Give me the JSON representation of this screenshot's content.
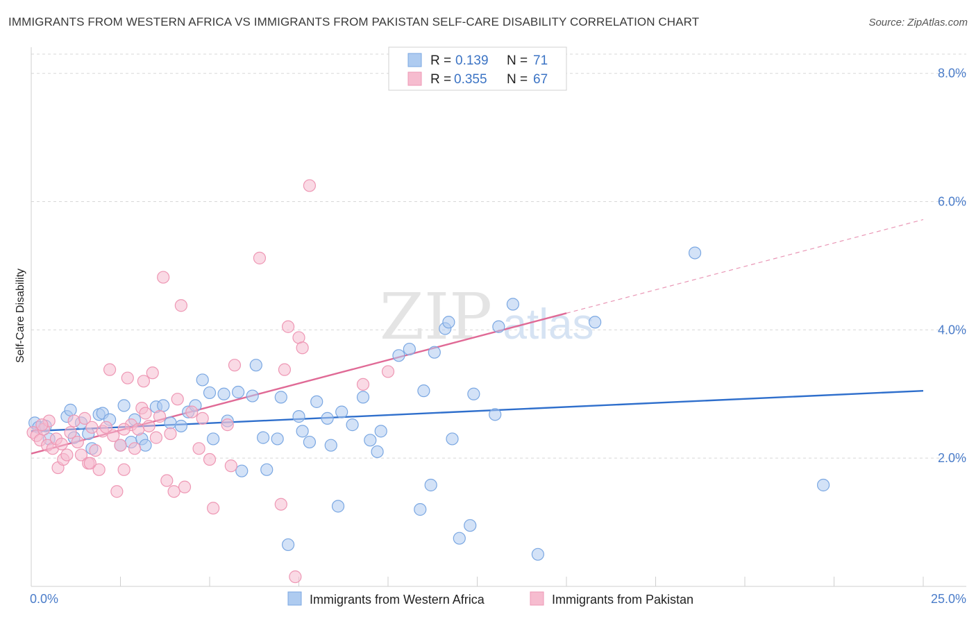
{
  "title": "IMMIGRANTS FROM WESTERN AFRICA VS IMMIGRANTS FROM PAKISTAN SELF-CARE DISABILITY CORRELATION CHART",
  "source": "Source: ZipAtlas.com",
  "watermark": {
    "zip": "ZIP",
    "atlas": "atlas"
  },
  "colors": {
    "blue_fill": "#aecbf0",
    "blue_stroke": "#7aa7e2",
    "blue_line": "#2f6fcc",
    "pink_fill": "#f6bccf",
    "pink_stroke": "#ee97b4",
    "pink_line": "#e06a96",
    "grid": "#d7d7d7",
    "tick_text": "#4a7cc9"
  },
  "legend": {
    "rows": [
      {
        "r_label": "R =",
        "r_value": "0.139",
        "n_label": "N =",
        "n_value": "71"
      },
      {
        "r_label": "R =",
        "r_value": "0.355",
        "n_label": "N =",
        "n_value": "67"
      }
    ]
  },
  "chart_data": {
    "type": "scatter",
    "title": "IMMIGRANTS FROM WESTERN AFRICA VS IMMIGRANTS FROM PAKISTAN SELF-CARE DISABILITY CORRELATION CHART",
    "xlabel": "",
    "ylabel": "Self-Care Disability",
    "xlim": [
      0,
      25
    ],
    "ylim": [
      0,
      8.3
    ],
    "x_tick_labels": [
      "0.0%",
      "25.0%"
    ],
    "y_ticks": [
      2,
      4,
      6,
      8
    ],
    "y_tick_labels": [
      "2.0%",
      "4.0%",
      "6.0%",
      "8.0%"
    ],
    "legend_position": "top-center",
    "series": [
      {
        "name": "Immigrants from Western Africa",
        "color": "blue",
        "trend": {
          "x0": 0,
          "y0": 2.42,
          "x1": 25,
          "y1": 3.05,
          "dash_from": null
        },
        "points": [
          [
            0.1,
            2.55
          ],
          [
            0.2,
            2.48
          ],
          [
            0.4,
            2.5
          ],
          [
            0.5,
            2.3
          ],
          [
            1.0,
            2.65
          ],
          [
            1.1,
            2.75
          ],
          [
            1.2,
            2.32
          ],
          [
            1.4,
            2.55
          ],
          [
            1.6,
            2.38
          ],
          [
            1.7,
            2.15
          ],
          [
            1.9,
            2.68
          ],
          [
            2.0,
            2.7
          ],
          [
            2.2,
            2.6
          ],
          [
            2.5,
            2.2
          ],
          [
            2.6,
            2.82
          ],
          [
            2.8,
            2.25
          ],
          [
            2.9,
            2.6
          ],
          [
            3.1,
            2.3
          ],
          [
            3.2,
            2.2
          ],
          [
            3.5,
            2.8
          ],
          [
            3.7,
            2.82
          ],
          [
            3.9,
            2.55
          ],
          [
            4.2,
            2.5
          ],
          [
            4.4,
            2.72
          ],
          [
            4.6,
            2.82
          ],
          [
            4.8,
            3.22
          ],
          [
            5.0,
            3.02
          ],
          [
            5.1,
            2.3
          ],
          [
            5.4,
            3.0
          ],
          [
            5.5,
            2.58
          ],
          [
            5.8,
            3.03
          ],
          [
            5.9,
            1.8
          ],
          [
            6.2,
            2.97
          ],
          [
            6.3,
            3.45
          ],
          [
            6.5,
            2.32
          ],
          [
            6.6,
            1.82
          ],
          [
            6.9,
            2.3
          ],
          [
            7.0,
            2.95
          ],
          [
            7.2,
            0.65
          ],
          [
            7.5,
            2.65
          ],
          [
            7.6,
            2.42
          ],
          [
            7.8,
            2.25
          ],
          [
            8.0,
            2.88
          ],
          [
            8.3,
            2.62
          ],
          [
            8.4,
            2.2
          ],
          [
            8.7,
            2.72
          ],
          [
            8.6,
            1.25
          ],
          [
            9.0,
            2.52
          ],
          [
            9.3,
            2.95
          ],
          [
            9.5,
            2.28
          ],
          [
            9.7,
            2.1
          ],
          [
            9.8,
            2.42
          ],
          [
            10.3,
            3.6
          ],
          [
            10.6,
            3.7
          ],
          [
            10.9,
            1.2
          ],
          [
            11.0,
            3.05
          ],
          [
            11.2,
            1.58
          ],
          [
            11.3,
            3.65
          ],
          [
            11.6,
            4.02
          ],
          [
            11.7,
            4.12
          ],
          [
            11.8,
            2.3
          ],
          [
            12.0,
            0.75
          ],
          [
            12.3,
            0.95
          ],
          [
            12.4,
            3.0
          ],
          [
            13.0,
            2.68
          ],
          [
            13.1,
            4.05
          ],
          [
            13.5,
            4.4
          ],
          [
            14.2,
            0.5
          ],
          [
            15.8,
            4.12
          ],
          [
            18.6,
            5.2
          ],
          [
            22.2,
            1.58
          ]
        ]
      },
      {
        "name": "Immigrants from Pakistan",
        "color": "pink",
        "trend": {
          "x0": 0,
          "y0": 2.07,
          "x1": 25,
          "y1": 5.72,
          "dash_from": 15
        },
        "points": [
          [
            0.05,
            2.4
          ],
          [
            0.15,
            2.35
          ],
          [
            0.25,
            2.28
          ],
          [
            0.35,
            2.45
          ],
          [
            0.45,
            2.2
          ],
          [
            0.5,
            2.58
          ],
          [
            0.6,
            2.15
          ],
          [
            0.7,
            2.3
          ],
          [
            0.75,
            1.85
          ],
          [
            0.85,
            2.22
          ],
          [
            0.9,
            1.98
          ],
          [
            1.0,
            2.05
          ],
          [
            1.1,
            2.4
          ],
          [
            1.2,
            2.58
          ],
          [
            1.3,
            2.25
          ],
          [
            1.4,
            2.05
          ],
          [
            1.5,
            2.62
          ],
          [
            1.6,
            1.92
          ],
          [
            1.65,
            1.92
          ],
          [
            1.7,
            2.48
          ],
          [
            1.8,
            2.12
          ],
          [
            1.9,
            1.82
          ],
          [
            2.0,
            2.42
          ],
          [
            2.1,
            2.48
          ],
          [
            2.2,
            3.38
          ],
          [
            2.3,
            2.35
          ],
          [
            2.4,
            1.48
          ],
          [
            2.5,
            2.2
          ],
          [
            2.6,
            1.82
          ],
          [
            2.7,
            3.25
          ],
          [
            2.8,
            2.52
          ],
          [
            2.9,
            2.15
          ],
          [
            3.0,
            2.45
          ],
          [
            3.1,
            2.78
          ],
          [
            3.15,
            3.2
          ],
          [
            3.2,
            2.7
          ],
          [
            3.3,
            2.5
          ],
          [
            3.4,
            3.33
          ],
          [
            3.5,
            2.32
          ],
          [
            3.6,
            2.65
          ],
          [
            3.7,
            4.82
          ],
          [
            3.8,
            1.65
          ],
          [
            3.9,
            2.38
          ],
          [
            4.0,
            1.48
          ],
          [
            4.1,
            2.92
          ],
          [
            4.2,
            4.38
          ],
          [
            4.3,
            1.55
          ],
          [
            4.5,
            2.72
          ],
          [
            4.7,
            2.15
          ],
          [
            4.8,
            2.62
          ],
          [
            5.0,
            1.98
          ],
          [
            5.1,
            1.22
          ],
          [
            5.5,
            2.52
          ],
          [
            5.6,
            1.88
          ],
          [
            5.7,
            3.45
          ],
          [
            6.4,
            5.12
          ],
          [
            7.0,
            1.28
          ],
          [
            7.1,
            3.38
          ],
          [
            7.2,
            4.05
          ],
          [
            7.4,
            0.15
          ],
          [
            7.5,
            3.88
          ],
          [
            7.6,
            3.72
          ],
          [
            7.8,
            6.25
          ],
          [
            9.3,
            3.15
          ],
          [
            10.0,
            3.35
          ],
          [
            2.6,
            2.45
          ],
          [
            0.3,
            2.52
          ]
        ]
      }
    ]
  },
  "bottom_legend": {
    "items": [
      {
        "label": "Immigrants from Western Africa",
        "color": "blue"
      },
      {
        "label": "Immigrants from Pakistan",
        "color": "pink"
      }
    ]
  }
}
